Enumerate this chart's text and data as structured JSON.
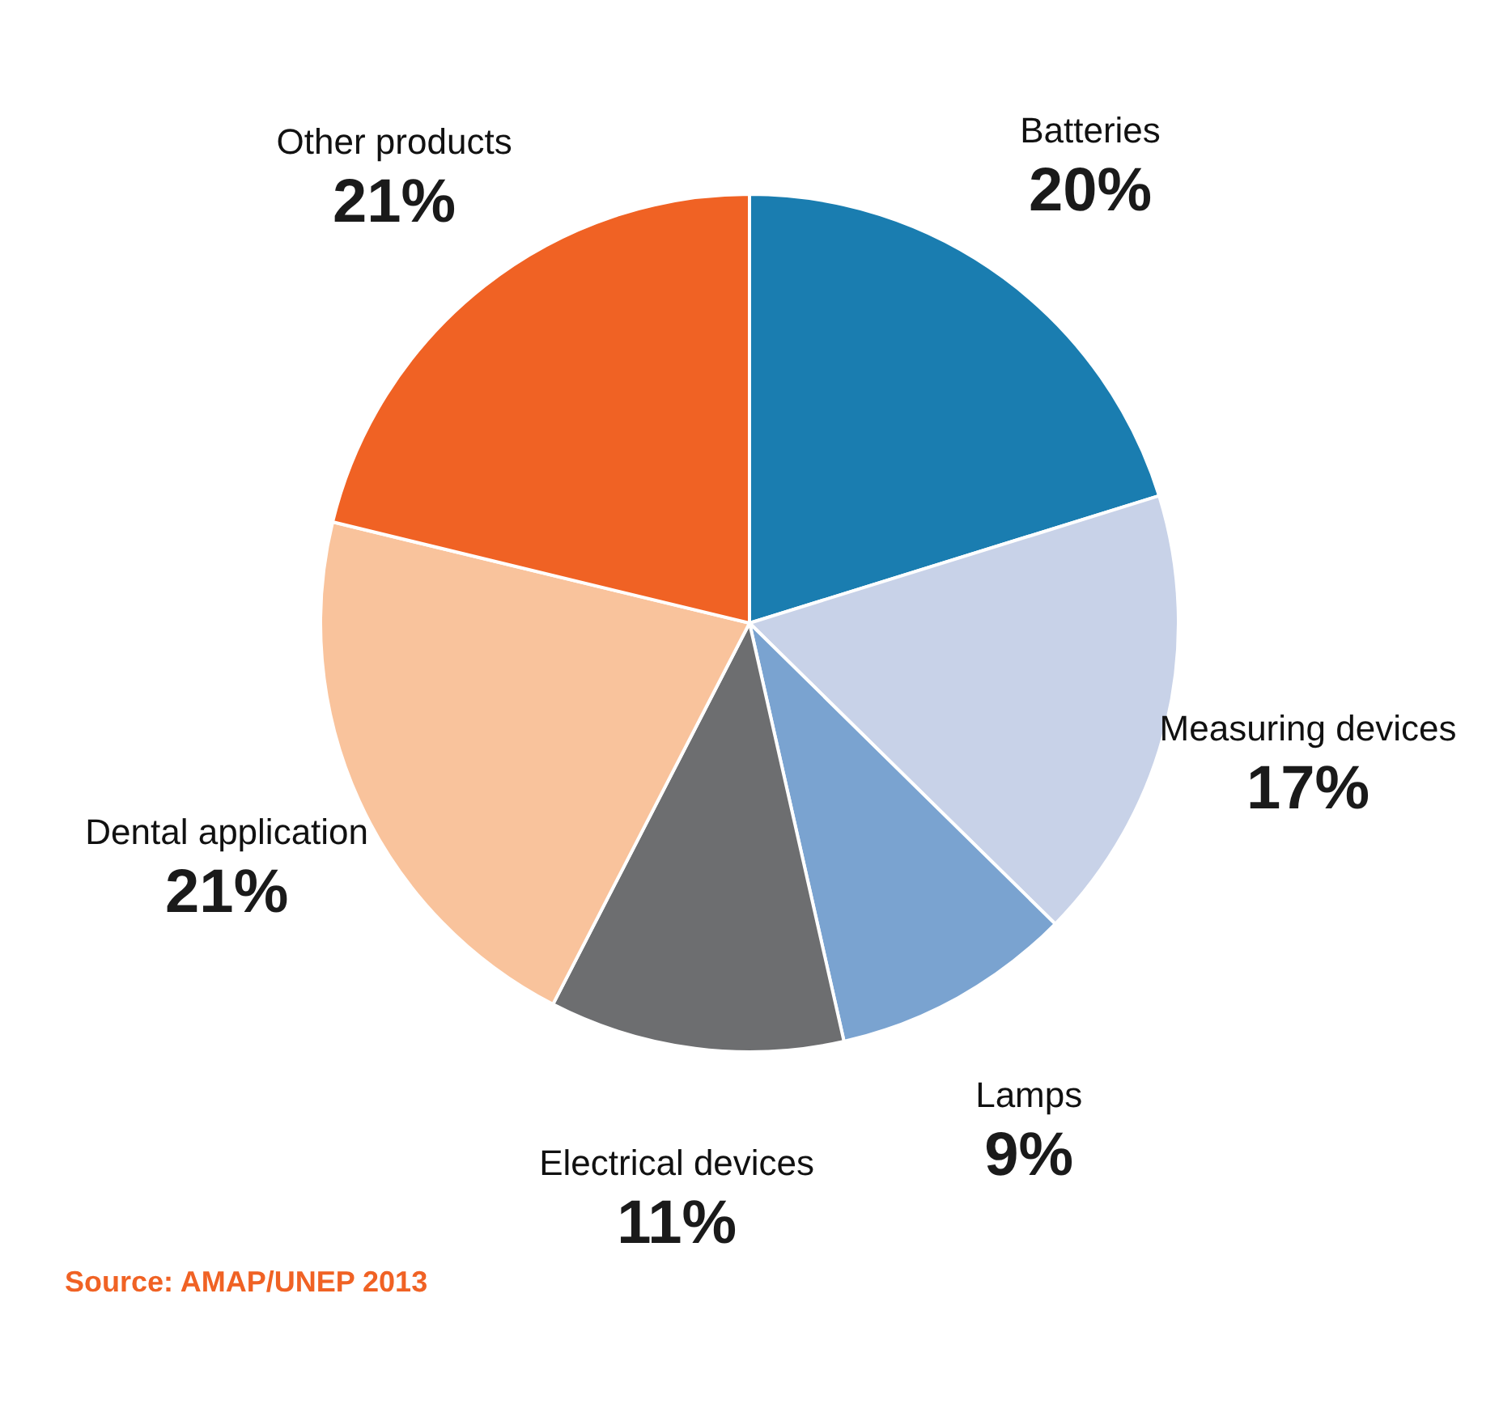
{
  "chart_data": {
    "type": "pie",
    "categories": [
      "Batteries",
      "Measuring devices",
      "Lamps",
      "Electrical devices",
      "Dental application",
      "Other products"
    ],
    "values": [
      20,
      17,
      9,
      11,
      21,
      21
    ],
    "value_labels": [
      "20%",
      "17%",
      "9%",
      "11%",
      "21%",
      "21%"
    ],
    "colors": [
      "#1a7db0",
      "#c8d2e8",
      "#7aa3d0",
      "#6d6e70",
      "#f9c39c",
      "#f06224"
    ],
    "annotations": [
      "Source: AMAP/UNEP 2013"
    ]
  }
}
